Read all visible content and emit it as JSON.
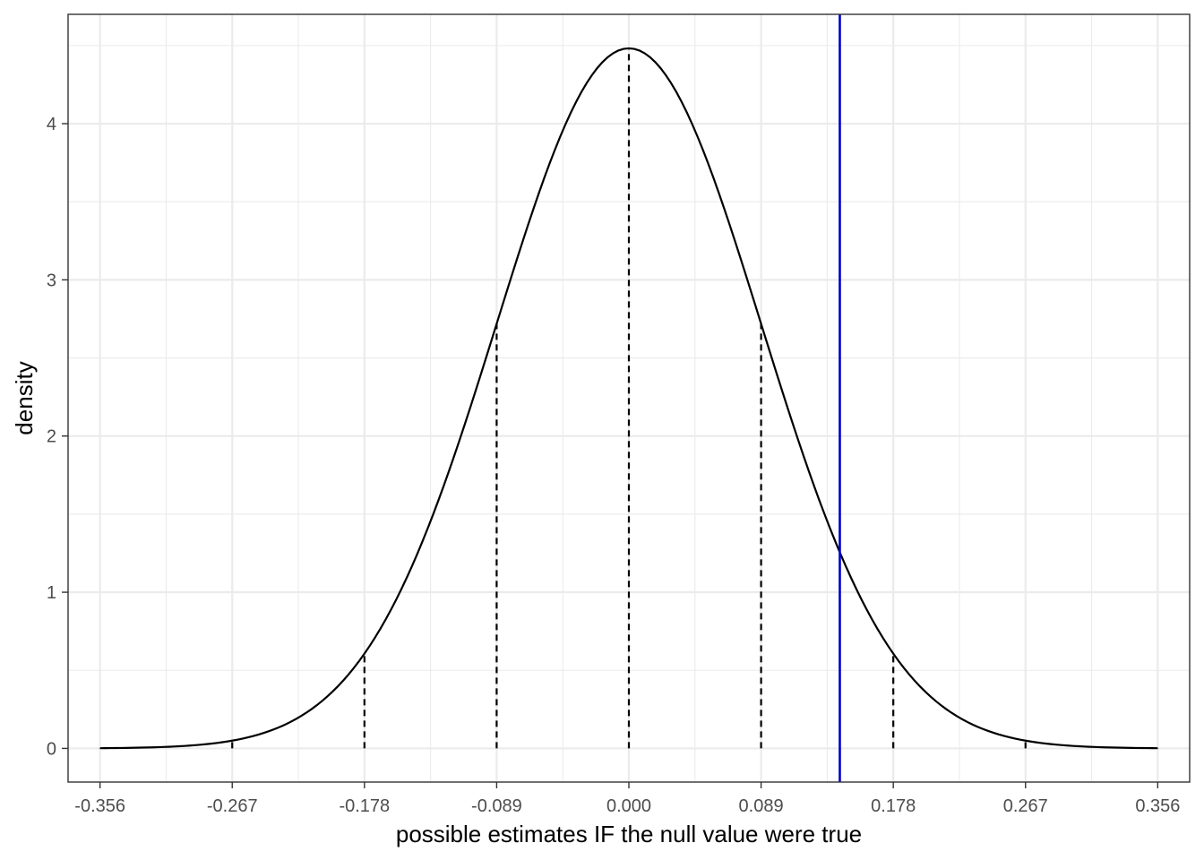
{
  "chart_data": {
    "type": "line",
    "title": "",
    "xlabel": "possible estimates IF the null value were true",
    "ylabel": "density",
    "xlim": [
      -0.3775,
      0.3775
    ],
    "ylim": [
      -0.2155,
      4.7
    ],
    "grid": true,
    "legend": "none",
    "x_ticks": [
      -0.356,
      -0.267,
      -0.178,
      -0.089,
      0.0,
      0.089,
      0.178,
      0.267,
      0.356
    ],
    "x_tick_labels": [
      "-0.356",
      "-0.267",
      "-0.178",
      "-0.089",
      "0.000",
      "0.089",
      "0.178",
      "0.267",
      "0.356"
    ],
    "y_ticks": [
      0,
      1,
      2,
      3,
      4
    ],
    "y_tick_labels": [
      "0",
      "1",
      "2",
      "3",
      "4"
    ],
    "distribution": {
      "kind": "normal",
      "mean": 0.0,
      "sd": 0.089,
      "x_range": [
        -0.356,
        0.356
      ],
      "color": "#000000"
    },
    "reference_lines": {
      "style": "dashed",
      "color": "#000000",
      "x": [
        -0.356,
        -0.267,
        -0.178,
        -0.089,
        0.0,
        0.089,
        0.178,
        0.267,
        0.356
      ]
    },
    "estimate_line": {
      "x": 0.142,
      "color": "#0000cc"
    }
  }
}
